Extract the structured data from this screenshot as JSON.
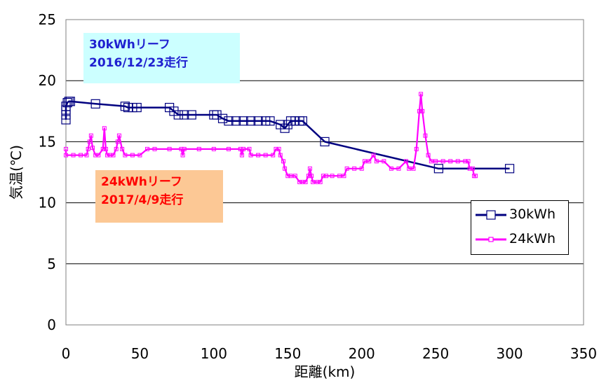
{
  "chart_data": {
    "type": "line",
    "title": "",
    "xlabel": "距離(km)",
    "ylabel": "気温(℃)",
    "xlim": [
      0,
      350
    ],
    "ylim": [
      0,
      25
    ],
    "xticks": [
      "0",
      "50",
      "100",
      "150",
      "200",
      "250",
      "300",
      "350"
    ],
    "yticks": [
      "0",
      "5",
      "10",
      "15",
      "20",
      "25"
    ],
    "grid": "horizontal",
    "legend_position": "right",
    "series": [
      {
        "name": "30kWh",
        "color": "#000080",
        "marker": "open-square",
        "points": [
          [
            0,
            16.8
          ],
          [
            0,
            17.2
          ],
          [
            0,
            17.6
          ],
          [
            0,
            17.9
          ],
          [
            1,
            18.2
          ],
          [
            2,
            18.3
          ],
          [
            3,
            18.3
          ],
          [
            20,
            18.1
          ],
          [
            40,
            17.9
          ],
          [
            42,
            17.8
          ],
          [
            45,
            17.8
          ],
          [
            48,
            17.8
          ],
          [
            70,
            17.8
          ],
          [
            73,
            17.5
          ],
          [
            76,
            17.2
          ],
          [
            80,
            17.2
          ],
          [
            85,
            17.2
          ],
          [
            100,
            17.2
          ],
          [
            102,
            17.2
          ],
          [
            106,
            16.9
          ],
          [
            110,
            16.7
          ],
          [
            115,
            16.7
          ],
          [
            120,
            16.7
          ],
          [
            125,
            16.7
          ],
          [
            130,
            16.7
          ],
          [
            135,
            16.7
          ],
          [
            138,
            16.7
          ],
          [
            145,
            16.4
          ],
          [
            148,
            16.1
          ],
          [
            150,
            16.4
          ],
          [
            152,
            16.7
          ],
          [
            155,
            16.7
          ],
          [
            158,
            16.7
          ],
          [
            160,
            16.7
          ],
          [
            175,
            15.0
          ],
          [
            252,
            12.8
          ],
          [
            300,
            12.8
          ]
        ]
      },
      {
        "name": "24kWh",
        "color": "#ff00ff",
        "marker": "small-square",
        "points": [
          [
            0,
            14.4
          ],
          [
            0,
            13.9
          ],
          [
            5,
            13.9
          ],
          [
            10,
            13.9
          ],
          [
            14,
            13.9
          ],
          [
            15,
            14.4
          ],
          [
            16,
            15.0
          ],
          [
            17,
            15.5
          ],
          [
            18,
            14.5
          ],
          [
            20,
            13.9
          ],
          [
            22,
            13.9
          ],
          [
            25,
            14.4
          ],
          [
            26,
            16.1
          ],
          [
            27,
            14.4
          ],
          [
            28,
            13.9
          ],
          [
            30,
            13.9
          ],
          [
            32,
            13.9
          ],
          [
            34,
            14.4
          ],
          [
            35,
            15.0
          ],
          [
            36,
            15.5
          ],
          [
            38,
            14.4
          ],
          [
            40,
            13.9
          ],
          [
            45,
            13.9
          ],
          [
            50,
            13.9
          ],
          [
            55,
            14.4
          ],
          [
            60,
            14.4
          ],
          [
            70,
            14.4
          ],
          [
            78,
            14.4
          ],
          [
            79,
            13.9
          ],
          [
            80,
            14.4
          ],
          [
            90,
            14.4
          ],
          [
            100,
            14.4
          ],
          [
            110,
            14.4
          ],
          [
            118,
            14.4
          ],
          [
            119,
            13.9
          ],
          [
            120,
            14.4
          ],
          [
            124,
            14.4
          ],
          [
            125,
            13.9
          ],
          [
            130,
            13.9
          ],
          [
            135,
            13.9
          ],
          [
            140,
            13.9
          ],
          [
            142,
            14.4
          ],
          [
            144,
            14.4
          ],
          [
            145,
            13.9
          ],
          [
            147,
            13.4
          ],
          [
            148,
            12.8
          ],
          [
            150,
            12.2
          ],
          [
            152,
            12.2
          ],
          [
            155,
            12.2
          ],
          [
            158,
            11.7
          ],
          [
            160,
            11.7
          ],
          [
            162,
            11.7
          ],
          [
            164,
            12.2
          ],
          [
            165,
            12.8
          ],
          [
            166,
            12.2
          ],
          [
            167,
            11.7
          ],
          [
            170,
            11.7
          ],
          [
            172,
            11.7
          ],
          [
            174,
            12.2
          ],
          [
            176,
            12.2
          ],
          [
            180,
            12.2
          ],
          [
            185,
            12.2
          ],
          [
            188,
            12.2
          ],
          [
            190,
            12.8
          ],
          [
            195,
            12.8
          ],
          [
            200,
            12.8
          ],
          [
            202,
            13.4
          ],
          [
            205,
            13.4
          ],
          [
            208,
            13.9
          ],
          [
            210,
            13.4
          ],
          [
            215,
            13.4
          ],
          [
            220,
            12.8
          ],
          [
            225,
            12.8
          ],
          [
            230,
            13.4
          ],
          [
            232,
            12.8
          ],
          [
            235,
            12.8
          ],
          [
            237,
            14.4
          ],
          [
            239,
            17.5
          ],
          [
            240,
            18.9
          ],
          [
            241,
            17.5
          ],
          [
            243,
            15.5
          ],
          [
            245,
            13.9
          ],
          [
            247,
            13.4
          ],
          [
            250,
            13.4
          ],
          [
            255,
            13.4
          ],
          [
            260,
            13.4
          ],
          [
            265,
            13.4
          ],
          [
            270,
            13.4
          ],
          [
            272,
            13.4
          ],
          [
            273,
            12.8
          ],
          [
            275,
            12.8
          ],
          [
            276,
            12.2
          ],
          [
            277,
            12.2
          ]
        ]
      }
    ],
    "annotations": [
      {
        "lines": [
          "30kWhリーフ",
          "2016/12/23走行"
        ],
        "color": "#1f1fd0",
        "background": "#ccffff"
      },
      {
        "lines": [
          "24kWhリーフ",
          "2017/4/9走行"
        ],
        "color": "#ff0000",
        "background": "#fcc895"
      }
    ]
  }
}
